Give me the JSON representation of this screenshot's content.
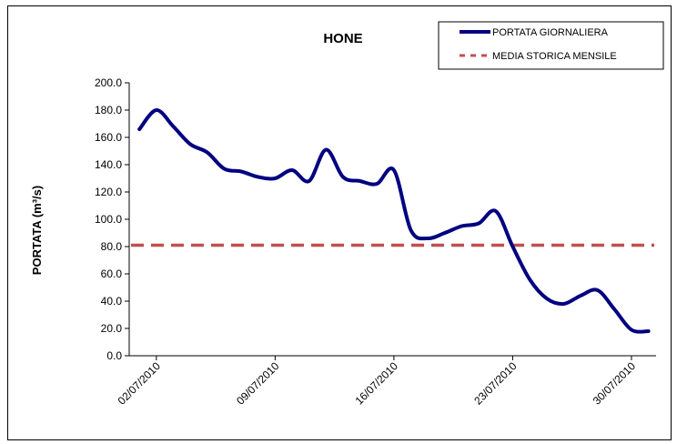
{
  "chart_data": {
    "type": "line",
    "title": "HONE",
    "xlabel": "",
    "ylabel": "PORTATA (m³/s)",
    "ylim": [
      0,
      200
    ],
    "yticks": [
      "0.0",
      "20.0",
      "40.0",
      "60.0",
      "80.0",
      "100.0",
      "120.0",
      "140.0",
      "160.0",
      "180.0",
      "200.0"
    ],
    "xticks": [
      "02/07/2010",
      "09/07/2010",
      "16/07/2010",
      "23/07/2010",
      "30/07/2010"
    ],
    "grid": false,
    "legend_position": "top-right",
    "series": [
      {
        "name": "PORTATA GIORNALIERA",
        "color": "#000080",
        "style": "solid",
        "x": [
          "01/07/2010",
          "02/07/2010",
          "03/07/2010",
          "04/07/2010",
          "05/07/2010",
          "06/07/2010",
          "07/07/2010",
          "08/07/2010",
          "09/07/2010",
          "10/07/2010",
          "11/07/2010",
          "12/07/2010",
          "13/07/2010",
          "14/07/2010",
          "15/07/2010",
          "16/07/2010",
          "17/07/2010",
          "18/07/2010",
          "19/07/2010",
          "20/07/2010",
          "21/07/2010",
          "22/07/2010",
          "23/07/2010",
          "24/07/2010",
          "25/07/2010",
          "26/07/2010",
          "27/07/2010",
          "28/07/2010",
          "29/07/2010",
          "30/07/2010",
          "31/07/2010"
        ],
        "values": [
          166,
          180,
          168,
          155,
          149,
          137,
          135,
          131,
          130,
          136,
          128,
          151,
          131,
          128,
          126,
          136,
          92,
          86,
          90,
          95,
          97,
          106,
          80,
          56,
          42,
          38,
          44,
          48,
          34,
          19,
          18
        ]
      },
      {
        "name": "MEDIA STORICA MENSILE",
        "color": "#c0504d",
        "style": "dashed",
        "value": 81
      }
    ]
  }
}
